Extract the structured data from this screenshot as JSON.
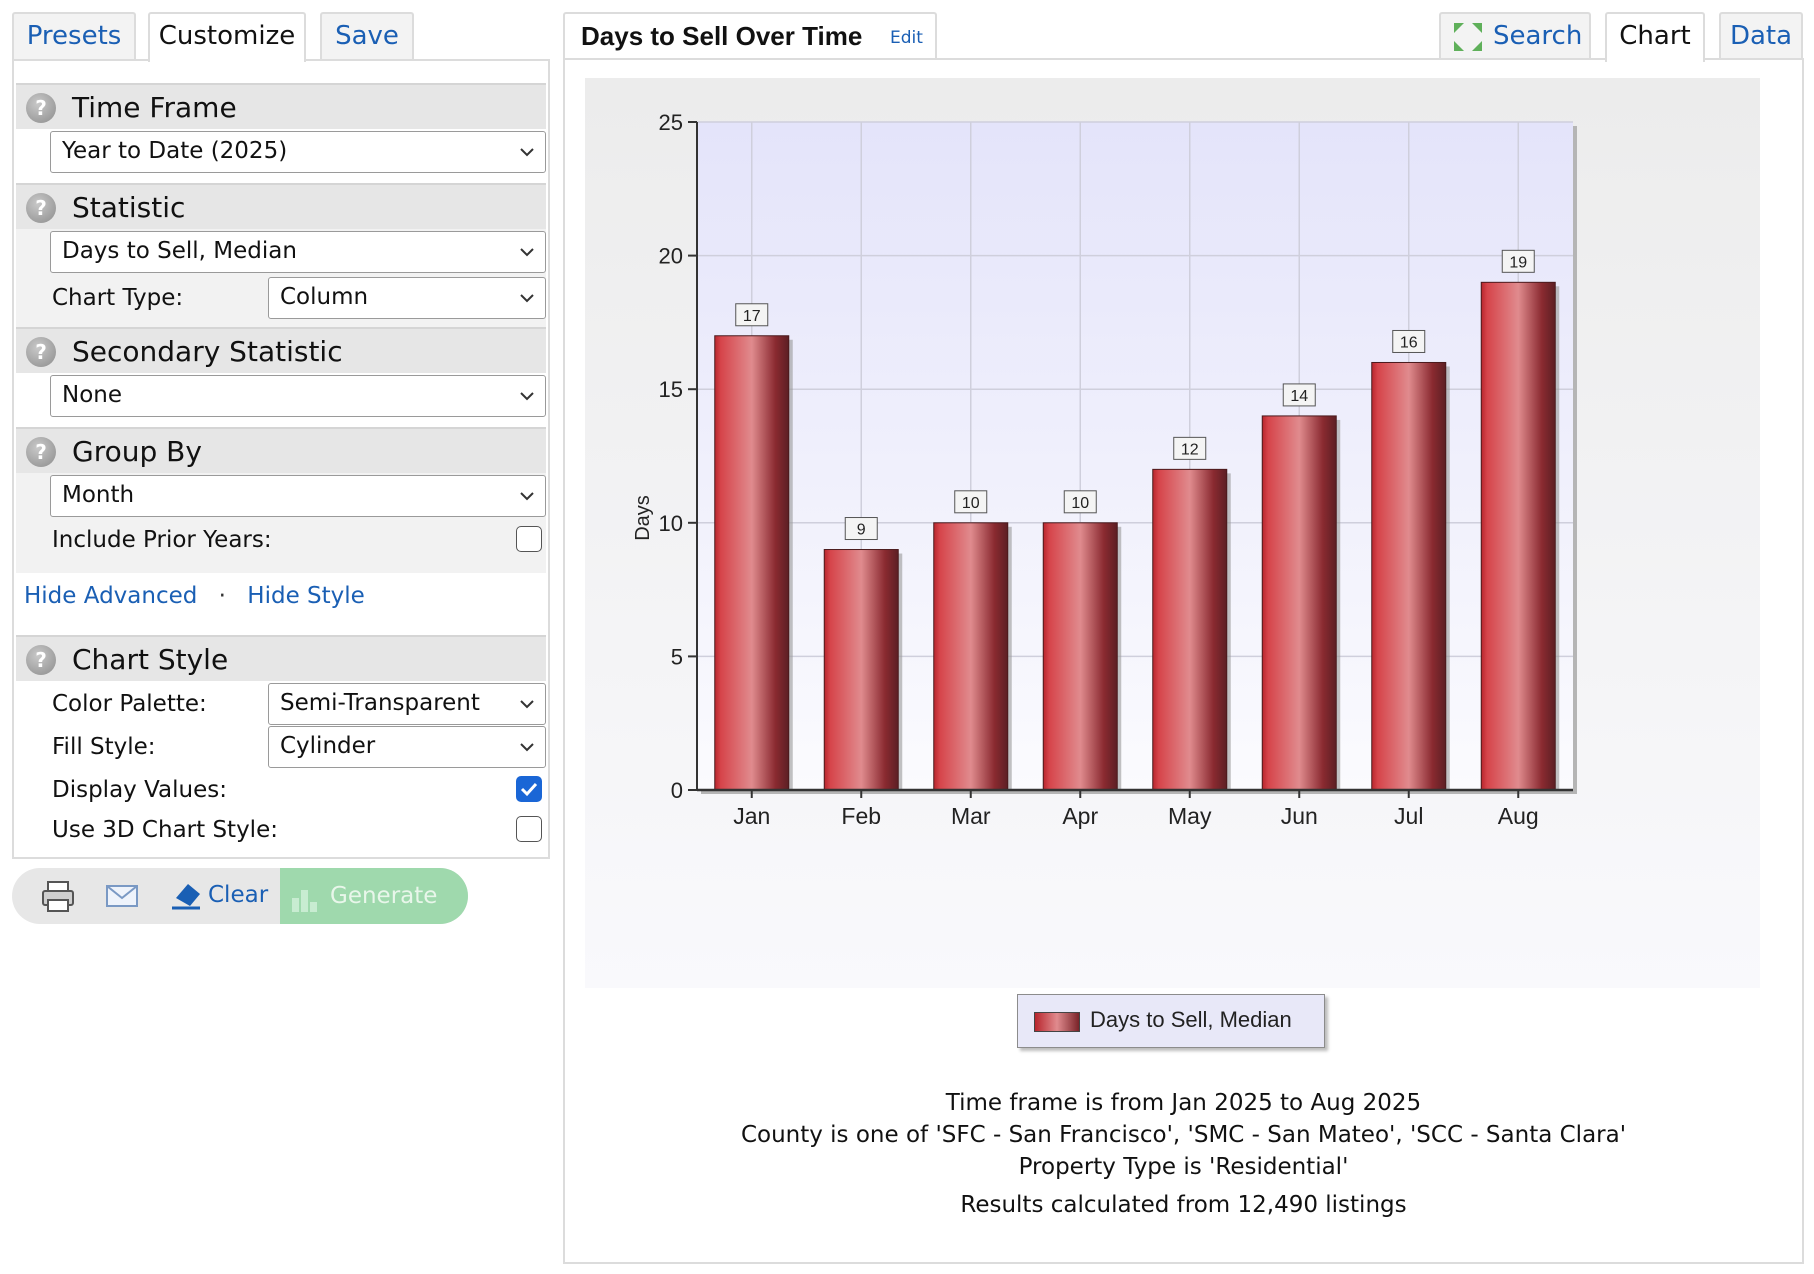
{
  "left_tabs": {
    "presets": "Presets",
    "customize": "Customize",
    "save": "Save"
  },
  "sections": {
    "time_frame": {
      "title": "Time Frame",
      "value": "Year to Date (2025)"
    },
    "statistic": {
      "title": "Statistic",
      "value": "Days to Sell, Median",
      "chart_type_label": "Chart Type:",
      "chart_type_value": "Column"
    },
    "secondary": {
      "title": "Secondary Statistic",
      "value": "None"
    },
    "group_by": {
      "title": "Group By",
      "value": "Month",
      "prior_years_label": "Include Prior Years:"
    },
    "chart_style": {
      "title": "Chart Style",
      "palette_label": "Color Palette:",
      "palette_value": "Semi-Transparent",
      "fill_label": "Fill Style:",
      "fill_value": "Cylinder",
      "display_values_label": "Display Values:",
      "use3d_label": "Use 3D Chart Style:"
    }
  },
  "links": {
    "hide_advanced": "Hide Advanced",
    "separator": "·",
    "hide_style": "Hide Style"
  },
  "toolbar": {
    "clear": "Clear",
    "generate": "Generate"
  },
  "right_tabs": {
    "title": "Days to Sell Over Time",
    "edit": "Edit",
    "search": "Search",
    "chart": "Chart",
    "data": "Data"
  },
  "captions": {
    "line1": "Time frame is from Jan 2025 to Aug 2025",
    "line2": "County is one of 'SFC - San Francisco', 'SMC - San Mateo', 'SCC - Santa Clara'",
    "line3": "Property Type is 'Residential'",
    "line4": "Results calculated from 12,490 listings"
  },
  "colors": {
    "link": "#1a5fb4",
    "bar": "#c9353c",
    "plot_bg_top": "#e4e4fa",
    "generate_bg": "#9fd9ad"
  },
  "chart_data": {
    "type": "bar",
    "categories": [
      "Jan",
      "Feb",
      "Mar",
      "Apr",
      "May",
      "Jun",
      "Jul",
      "Aug"
    ],
    "series": [
      {
        "name": "Days to Sell, Median",
        "values": [
          17,
          9,
          10,
          10,
          12,
          14,
          16,
          19
        ]
      }
    ],
    "ylabel": "Days",
    "ylim": [
      0,
      25
    ],
    "yticks": [
      0,
      5,
      10,
      15,
      20,
      25
    ],
    "data_labels": true,
    "grid": true,
    "legend": "bottom-center"
  }
}
